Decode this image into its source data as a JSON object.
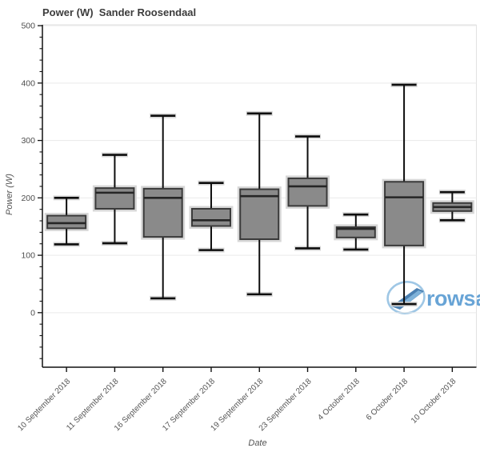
{
  "title": "Power (W)  Sander Roosendaal",
  "watermark": {
    "text": "rowsandall",
    "text_color": "#68a4d6",
    "circle_color": "#9fc7e5",
    "swoosh_color": "#4b80b2"
  },
  "chart_data": {
    "type": "box",
    "title": "Power (W)  Sander Roosendaal",
    "xlabel": "Date",
    "ylabel": "Power (W)",
    "ylim": [
      -95,
      501.5
    ],
    "yticks": [
      0,
      100,
      200,
      300,
      400,
      500
    ],
    "minor_tick_step": 20,
    "grid": true,
    "legend": "none",
    "categories": [
      "10 September 2018",
      "11 September 2018",
      "16 September 2018",
      "17 September 2018",
      "19 September 2018",
      "23 September 2018",
      "4 October 2018",
      "6 October 2018",
      "10 October 2018"
    ],
    "series": [
      {
        "category": "10 September 2018",
        "low": 119,
        "q1": 147,
        "median": 156,
        "q3": 169,
        "high": 200
      },
      {
        "category": "11 September 2018",
        "low": 121,
        "q1": 181,
        "median": 209,
        "q3": 217,
        "high": 275
      },
      {
        "category": "16 September 2018",
        "low": 25,
        "q1": 132,
        "median": 200,
        "q3": 216,
        "high": 343
      },
      {
        "category": "17 September 2018",
        "low": 109,
        "q1": 151,
        "median": 161,
        "q3": 181,
        "high": 226
      },
      {
        "category": "19 September 2018",
        "low": 32,
        "q1": 128,
        "median": 203,
        "q3": 215,
        "high": 347
      },
      {
        "category": "23 September 2018",
        "low": 112,
        "q1": 186,
        "median": 220,
        "q3": 234,
        "high": 307
      },
      {
        "category": "4 October 2018",
        "low": 110,
        "q1": 131,
        "median": 146,
        "q3": 149,
        "high": 171
      },
      {
        "category": "6 October 2018",
        "low": 15,
        "q1": 117,
        "median": 201,
        "q3": 228,
        "high": 397
      },
      {
        "category": "10 October 2018",
        "low": 161,
        "q1": 177,
        "median": 184,
        "q3": 191,
        "high": 210
      }
    ],
    "colors": {
      "box_fill": "#8a8a8a",
      "box_stroke": "#3a3a3a",
      "median": "#262626",
      "whisker": "#0d0d0d",
      "halo": "#d7d7d7",
      "grid": "#e9e9e9",
      "border": "#e2e2e2",
      "axis": "#111111",
      "tick_text": "#4d4d4d"
    }
  }
}
